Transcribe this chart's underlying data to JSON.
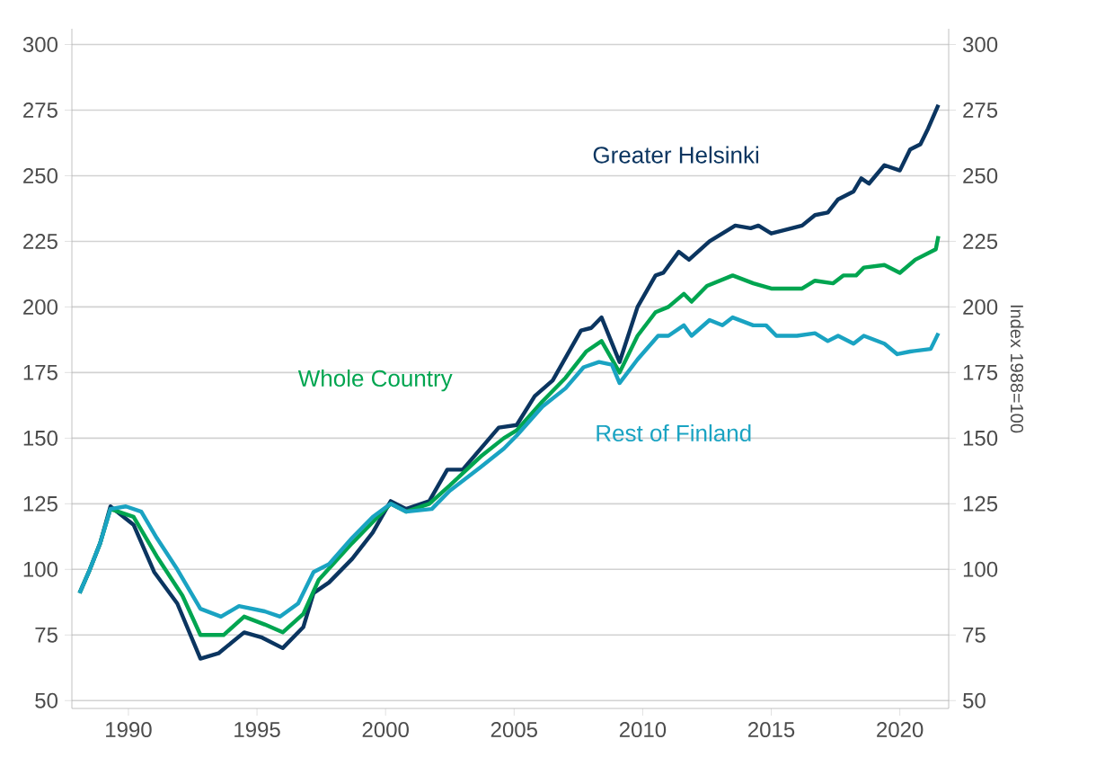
{
  "chart_data": {
    "type": "line",
    "y2label": "Index 1988=100",
    "xlim": [
      1987.8,
      2021.9
    ],
    "xticks": [
      1990,
      1995,
      2000,
      2005,
      2010,
      2015,
      2020
    ],
    "ylim": [
      47,
      306
    ],
    "yticks": [
      50,
      75,
      100,
      125,
      150,
      175,
      200,
      225,
      250,
      275,
      300
    ],
    "y2lim": [
      47,
      306
    ],
    "y2ticks": [
      50,
      75,
      100,
      125,
      150,
      175,
      200,
      225,
      250,
      275,
      300
    ],
    "grid": "y",
    "marker": "none",
    "line_style": "solid",
    "series": [
      {
        "name": "Greater Helsinki",
        "color": "#0b3560",
        "x": [
          1988.1,
          1988.5,
          1988.9,
          1989.3,
          1990.2,
          1991.0,
          1991.9,
          1992.8,
          1993.5,
          1994.5,
          1995.2,
          1996.0,
          1996.8,
          1997.2,
          1997.8,
          1998.7,
          1999.5,
          2000.2,
          2000.8,
          2001.7,
          2002.4,
          2003.0,
          2003.7,
          2004.4,
          2005.1,
          2005.8,
          2006.5,
          2007.6,
          2008.0,
          2008.4,
          2009.1,
          2009.8,
          2010.5,
          2010.8,
          2011.4,
          2011.8,
          2012.6,
          2013.6,
          2014.2,
          2014.5,
          2015.0,
          2016.2,
          2016.7,
          2017.2,
          2017.6,
          2018.2,
          2018.5,
          2018.8,
          2019.4,
          2020.0,
          2020.4,
          2020.8,
          2021.1,
          2021.5
        ],
        "values": [
          91,
          100,
          110,
          124,
          117,
          99,
          87,
          66,
          68,
          76,
          74,
          70,
          78,
          91,
          95,
          104,
          114,
          126,
          123,
          126,
          138,
          138,
          146,
          154,
          155,
          166,
          172,
          191,
          192,
          196,
          179,
          200,
          212,
          213,
          221,
          218,
          225,
          231,
          230,
          231,
          228,
          231,
          235,
          236,
          241,
          244,
          249,
          247,
          254,
          252,
          260,
          262,
          268,
          277
        ]
      },
      {
        "name": "Whole Country",
        "color": "#00a550",
        "x": [
          1988.1,
          1988.5,
          1988.9,
          1989.3,
          1990.2,
          1991.1,
          1992.1,
          1992.8,
          1993.7,
          1994.5,
          1995.3,
          1996.0,
          1996.8,
          1997.4,
          1998.7,
          1999.5,
          2000.2,
          2000.8,
          2001.7,
          2002.5,
          2003.7,
          2004.6,
          2005.1,
          2006.1,
          2007.0,
          2007.8,
          2008.4,
          2009.1,
          2009.8,
          2010.5,
          2011.0,
          2011.6,
          2011.9,
          2012.5,
          2013.5,
          2014.3,
          2015.0,
          2016.2,
          2016.7,
          2017.4,
          2017.8,
          2018.3,
          2018.6,
          2019.4,
          2020.0,
          2020.6,
          2021.4,
          2021.5
        ],
        "values": [
          91,
          100,
          110,
          123,
          120,
          105,
          90,
          75,
          75,
          82,
          79,
          76,
          83,
          96,
          110,
          118,
          125,
          122,
          125,
          132,
          143,
          150,
          153,
          164,
          173,
          183,
          187,
          175,
          189,
          198,
          200,
          205,
          202,
          208,
          212,
          209,
          207,
          207,
          210,
          209,
          212,
          212,
          215,
          216,
          213,
          218,
          222,
          227
        ]
      },
      {
        "name": "Rest of Finland",
        "color": "#1aa3c2",
        "x": [
          1988.1,
          1988.5,
          1988.9,
          1989.3,
          1989.9,
          1990.5,
          1991.1,
          1991.9,
          1992.8,
          1993.6,
          1994.3,
          1995.3,
          1995.9,
          1996.6,
          1997.2,
          1997.8,
          1998.7,
          1999.5,
          2000.2,
          2000.8,
          2001.8,
          2002.5,
          2003.7,
          2004.6,
          2005.1,
          2006.1,
          2007.0,
          2007.7,
          2008.3,
          2008.8,
          2009.1,
          2009.8,
          2010.6,
          2011.0,
          2011.6,
          2011.9,
          2012.6,
          2013.1,
          2013.5,
          2014.3,
          2014.8,
          2015.2,
          2016.0,
          2016.7,
          2017.2,
          2017.6,
          2018.2,
          2018.6,
          2019.4,
          2019.9,
          2020.4,
          2021.2,
          2021.5
        ],
        "values": [
          91,
          100,
          110,
          123,
          124,
          122,
          112,
          100,
          85,
          82,
          86,
          84,
          82,
          87,
          99,
          102,
          112,
          120,
          125,
          122,
          123,
          130,
          139,
          146,
          151,
          162,
          169,
          177,
          179,
          178,
          171,
          180,
          189,
          189,
          193,
          189,
          195,
          193,
          196,
          193,
          193,
          189,
          189,
          190,
          187,
          189,
          186,
          189,
          186,
          182,
          183,
          184,
          190
        ]
      }
    ]
  }
}
